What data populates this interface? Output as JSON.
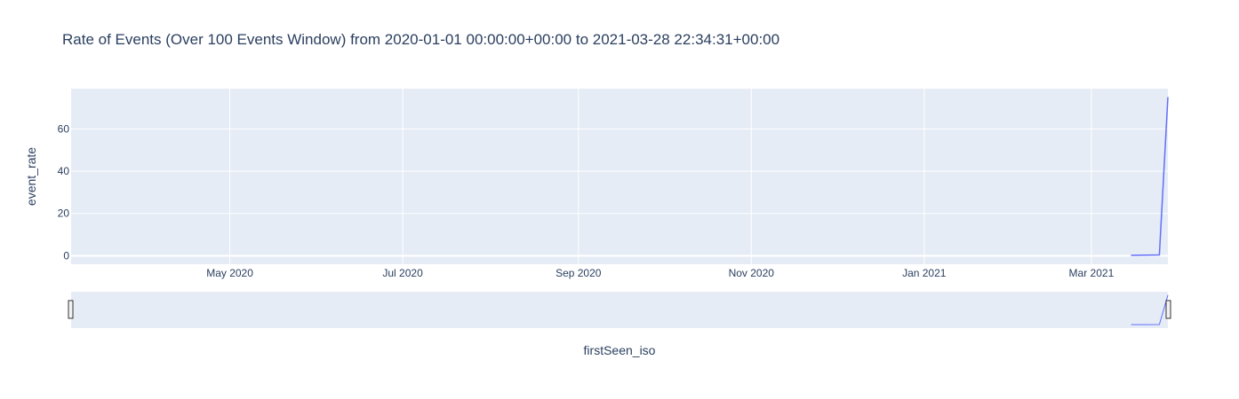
{
  "chart_data": {
    "type": "line",
    "title": "Rate of Events (Over 100 Events Window) from 2020-01-01 00:00:00+00:00 to 2021-03-28 22:34:31+00:00",
    "xlabel": "firstSeen_iso",
    "ylabel": "event_rate",
    "x_type": "date",
    "xlim": [
      "2020-03-06",
      "2021-03-28"
    ],
    "ylim": [
      -4,
      79
    ],
    "x_ticks": [
      {
        "date": "2020-05-01",
        "label": "May 2020"
      },
      {
        "date": "2020-07-01",
        "label": "Jul 2020"
      },
      {
        "date": "2020-09-01",
        "label": "Sep 2020"
      },
      {
        "date": "2020-11-01",
        "label": "Nov 2020"
      },
      {
        "date": "2021-01-01",
        "label": "Jan 2021"
      },
      {
        "date": "2021-03-01",
        "label": "Mar 2021"
      }
    ],
    "y_ticks": [
      0,
      20,
      40,
      60
    ],
    "grid": true,
    "legend": "none",
    "rangeslider": true,
    "series": [
      {
        "color": "#636efa",
        "x": [
          "2021-03-15",
          "2021-03-20",
          "2021-03-25",
          "2021-03-28"
        ],
        "y": [
          0.2,
          0.3,
          0.4,
          75
        ]
      }
    ]
  },
  "colors": {
    "plot_bg": "#e5ecf6",
    "grid": "#ffffff",
    "text": "#2a3f5f",
    "line": "#636efa"
  }
}
